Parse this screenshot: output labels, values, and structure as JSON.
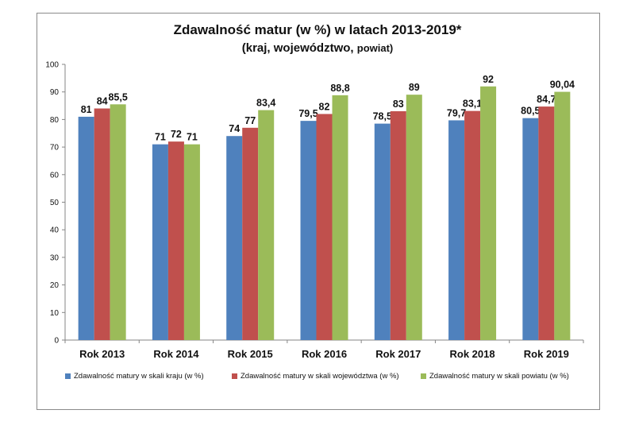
{
  "chart_data": {
    "type": "bar",
    "title": "Zdawalność matur (w %) w latach 2013-2019*",
    "subtitle_main": "(kraj, województwo, ",
    "subtitle_small": "powiat)",
    "categories": [
      "Rok 2013",
      "Rok 2014",
      "Rok 2015",
      "Rok 2016",
      "Rok 2017",
      "Rok 2018",
      "Rok 2019"
    ],
    "series": [
      {
        "name": "Zdawalność matury w skali kraju (w %)",
        "color": "#4f81bd",
        "values": [
          81,
          71,
          74,
          79.5,
          78.5,
          79.7,
          80.5
        ],
        "labels": [
          "81",
          "71",
          "74",
          "79,5",
          "78,5",
          "79,7",
          "80,5"
        ]
      },
      {
        "name": "Zdawalność matury w skali województwa (w %)",
        "color": "#c0504d",
        "values": [
          84,
          72,
          77,
          82,
          83,
          83.1,
          84.7
        ],
        "labels": [
          "84",
          "72",
          "77",
          "82",
          "83",
          "83,1",
          "84,7"
        ]
      },
      {
        "name": "Zdawalność matury w skali powiatu (w %)",
        "color": "#9bbb59",
        "values": [
          85.5,
          71,
          83.4,
          88.8,
          89,
          92,
          90.04
        ],
        "labels": [
          "85,5",
          "71",
          "83,4",
          "88,8",
          "89",
          "92",
          "90,04"
        ]
      }
    ],
    "ylim": [
      0,
      100
    ],
    "yticks": [
      "0",
      "10",
      "20",
      "30",
      "40",
      "50",
      "60",
      "70",
      "80",
      "90",
      "100"
    ],
    "grid": false,
    "legend_position": "bottom"
  }
}
